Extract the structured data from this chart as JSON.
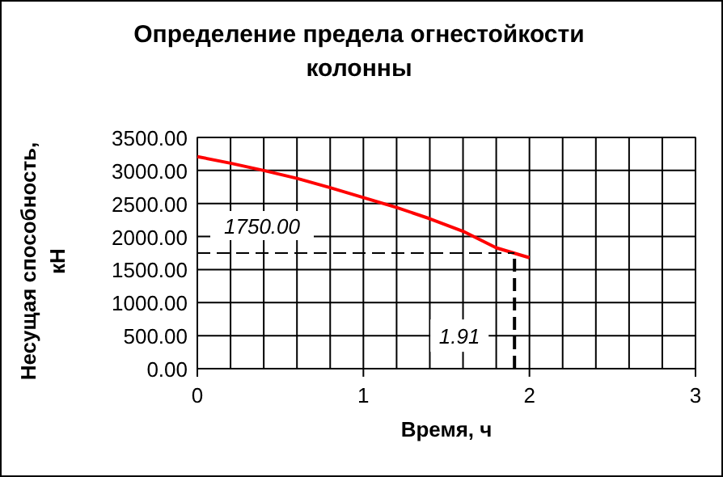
{
  "chart_data": {
    "type": "line",
    "title": "Определение предела огнестойкости колонны",
    "xlabel": "Время, ч",
    "ylabel": "Несущая способность, кН",
    "x": [
      0,
      0.2,
      0.4,
      0.6,
      0.8,
      1.0,
      1.2,
      1.4,
      1.6,
      1.8,
      2.0
    ],
    "series": [
      {
        "color": "#ff0000",
        "values": [
          3210,
          3110,
          3000,
          2880,
          2740,
          2590,
          2440,
          2270,
          2080,
          1830,
          1680
        ]
      }
    ],
    "xlim": [
      0,
      3
    ],
    "xticks": [
      0,
      {
        "value": 0.2,
        "label": null
      },
      {
        "value": 0.4,
        "label": null
      },
      {
        "value": 0.6,
        "label": null
      },
      {
        "value": 0.8,
        "label": null
      },
      1,
      {
        "value": 1.2,
        "label": null
      },
      {
        "value": 1.4,
        "label": null
      },
      {
        "value": 1.6,
        "label": null
      },
      {
        "value": 1.8,
        "label": null
      },
      2,
      {
        "value": 2.2,
        "label": null
      },
      {
        "value": 2.4,
        "label": null
      },
      {
        "value": 2.6,
        "label": null
      },
      {
        "value": 2.8,
        "label": null
      },
      3
    ],
    "ylim": [
      0,
      3500
    ],
    "yticks": [
      {
        "value": 0,
        "label": "0.00"
      },
      {
        "value": 500,
        "label": "500.00"
      },
      {
        "value": 1000,
        "label": "1000.00"
      },
      {
        "value": 1500,
        "label": "1500.00"
      },
      {
        "value": 2000,
        "label": "2000.00"
      },
      {
        "value": 2500,
        "label": "2500.00"
      },
      {
        "value": 3000,
        "label": "3000.00"
      },
      {
        "value": 3500,
        "label": "3500.00"
      }
    ],
    "grid": true,
    "marker": "none",
    "line_style": "solid",
    "ref_lines": [
      {
        "axis": "y",
        "value": 1750,
        "label": "1750.00",
        "color": "#000000",
        "line_style": "dashed"
      },
      {
        "axis": "x",
        "value": 1.91,
        "label": "1.91",
        "color": "#000000",
        "line_style": "dashed"
      }
    ]
  }
}
